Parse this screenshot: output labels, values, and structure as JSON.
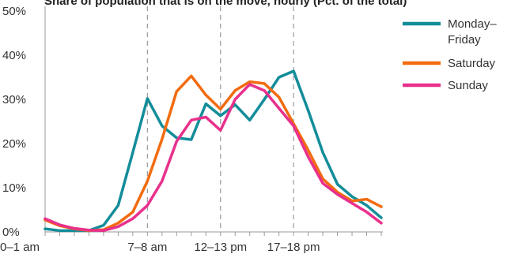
{
  "chart_data": {
    "type": "line",
    "title": "Share of population that is on the move, hourly (Pct. of the total)",
    "xlabel": "",
    "ylabel": "",
    "ylim": [
      0,
      50
    ],
    "yticks": [
      0,
      10,
      20,
      30,
      40,
      50
    ],
    "ytick_labels": [
      "0%",
      "10%",
      "20%",
      "30%",
      "40%",
      "50%"
    ],
    "x": [
      0,
      1,
      2,
      3,
      4,
      5,
      6,
      7,
      8,
      9,
      10,
      11,
      12,
      13,
      14,
      15,
      16,
      17,
      18,
      19,
      20,
      21,
      22,
      23
    ],
    "xtick_labels": [
      {
        "x": 0,
        "label": "0–1 am"
      },
      {
        "x": 7,
        "label": "7–8 am"
      },
      {
        "x": 12,
        "label": "12–13 pm"
      },
      {
        "x": 17,
        "label": "17–18 pm"
      }
    ],
    "reference_lines_x": [
      7,
      12,
      17
    ],
    "grid": false,
    "legend_position": "right",
    "series": [
      {
        "name": "Monday– Friday",
        "legend_lines": [
          "Monday–",
          "Friday"
        ],
        "color": "#138d9a",
        "values": [
          0.7,
          0.3,
          0.3,
          0.3,
          1.5,
          6.0,
          18.0,
          30.2,
          24.0,
          21.3,
          20.9,
          29.0,
          26.3,
          28.8,
          25.3,
          30.0,
          35.0,
          36.4,
          27.5,
          18.0,
          10.8,
          8.0,
          6.0,
          3.2
        ]
      },
      {
        "name": "Saturday",
        "legend_lines": [
          "Saturday"
        ],
        "color": "#f26b0f",
        "values": [
          2.7,
          1.4,
          0.7,
          0.3,
          0.5,
          2.0,
          4.5,
          11.5,
          21.0,
          31.8,
          35.3,
          31.0,
          27.8,
          32.0,
          34.0,
          33.6,
          30.5,
          24.5,
          18.5,
          12.0,
          9.0,
          7.0,
          7.4,
          5.7
        ]
      },
      {
        "name": "Sunday",
        "legend_lines": [
          "Sunday"
        ],
        "color": "#e8308c",
        "values": [
          3.0,
          1.6,
          0.8,
          0.4,
          0.3,
          1.2,
          3.0,
          6.0,
          11.5,
          20.5,
          25.3,
          26.0,
          23.0,
          30.0,
          33.4,
          32.0,
          28.0,
          24.0,
          17.0,
          11.0,
          8.5,
          6.5,
          4.5,
          2.0
        ]
      }
    ]
  }
}
